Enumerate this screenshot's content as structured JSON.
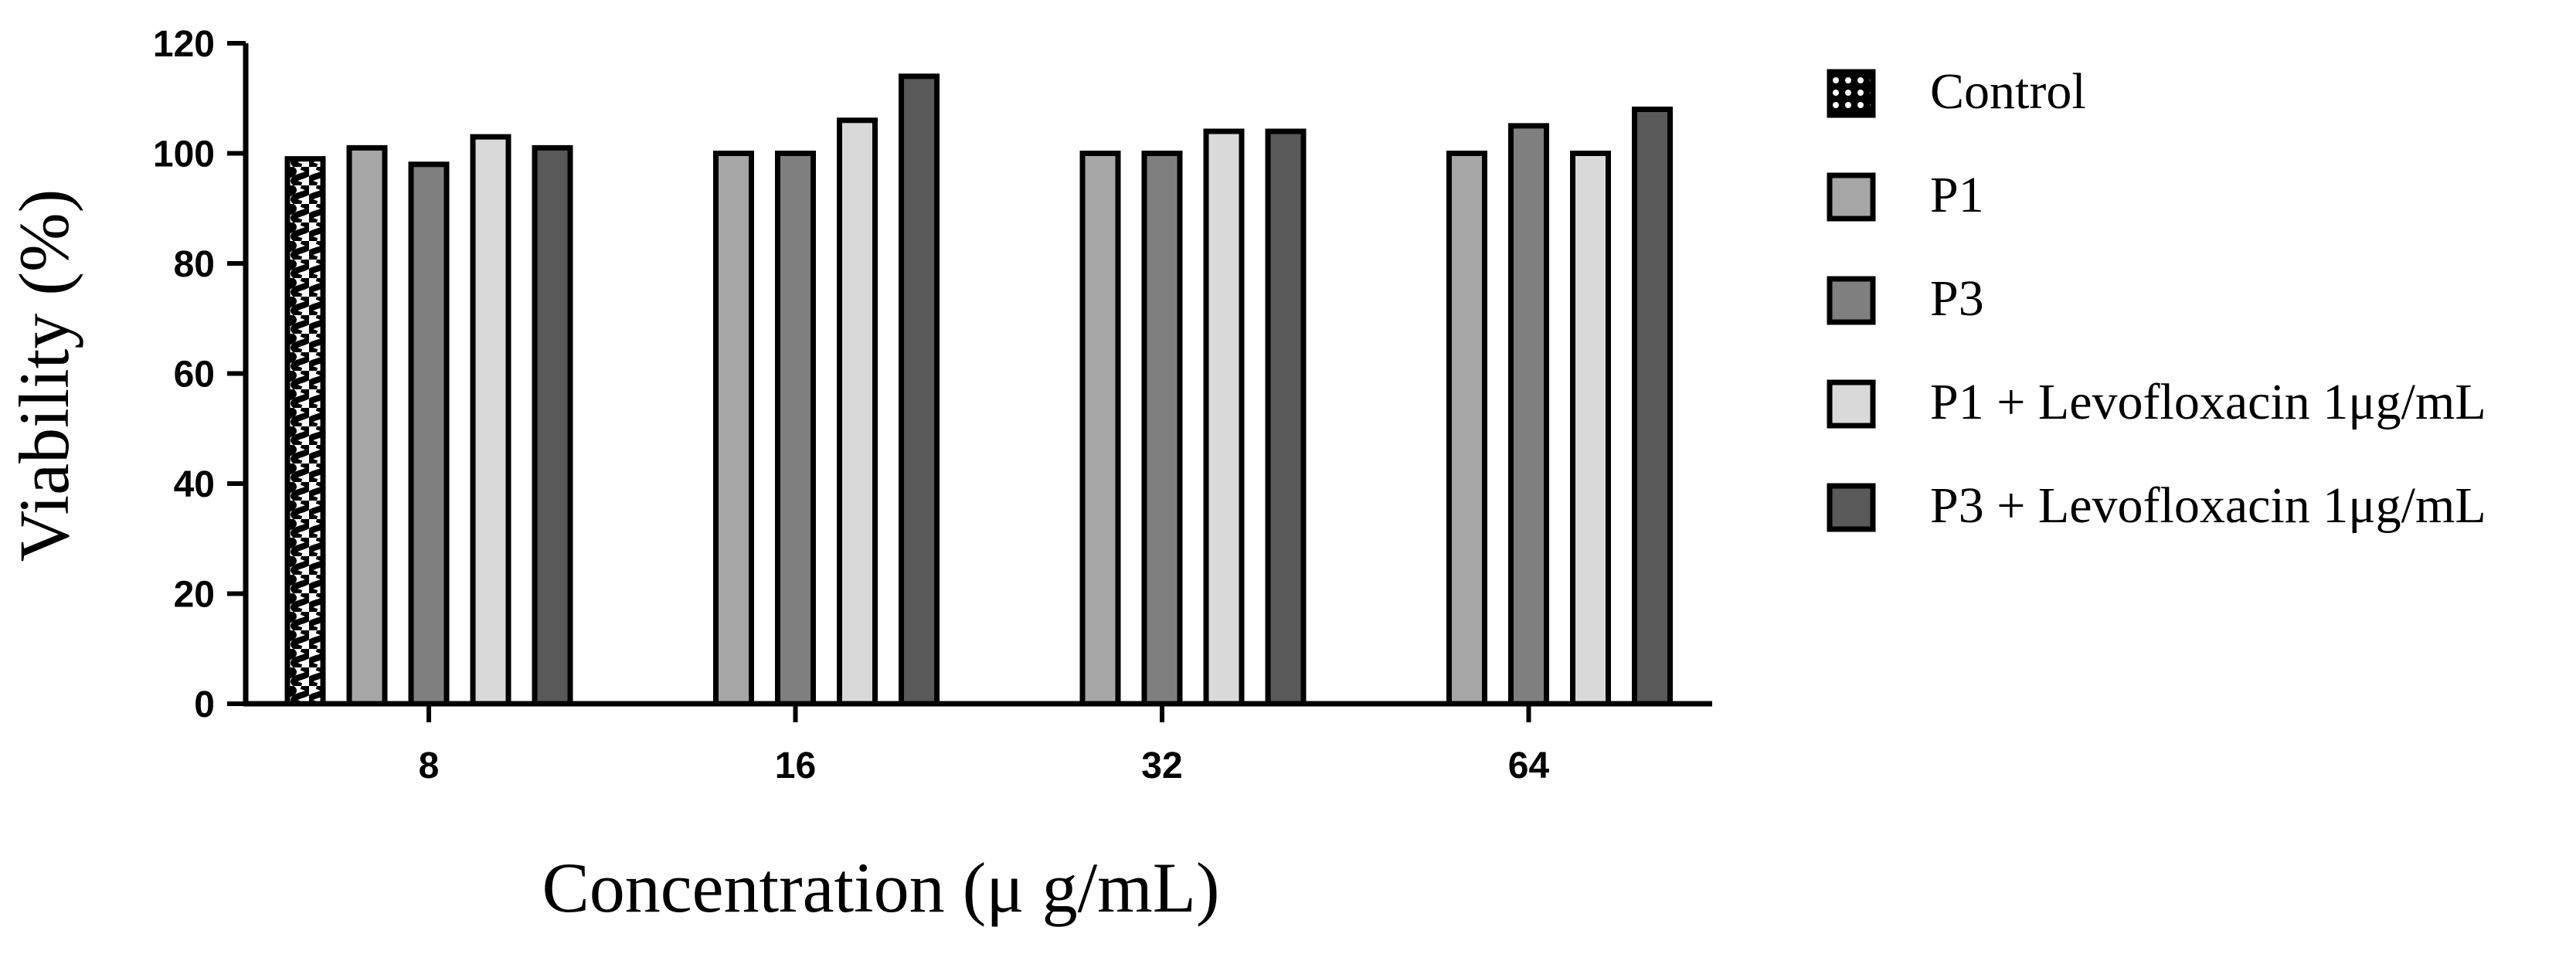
{
  "chart_data": {
    "type": "bar",
    "xlabel": "Concentration (μ g/mL)",
    "ylabel": "Viability (%)",
    "ylim": [
      0,
      120
    ],
    "yticks": [
      0,
      20,
      40,
      60,
      80,
      100,
      120
    ],
    "categories": [
      "8",
      "16",
      "32",
      "64"
    ],
    "legend_position": "right",
    "series": [
      {
        "name": "Control",
        "values": [
          99,
          null,
          null,
          null
        ],
        "color": "#ffffff",
        "pattern": "wavy-black-white"
      },
      {
        "name": "P1",
        "values": [
          101,
          100,
          100,
          100
        ],
        "color": "#a6a6a6"
      },
      {
        "name": "P3",
        "values": [
          98,
          100,
          100,
          105
        ],
        "color": "#7f7f7f"
      },
      {
        "name": "P1 + Levofloxacin 1μg/mL",
        "values": [
          103,
          106,
          104,
          100
        ],
        "color": "#d9d9d9"
      },
      {
        "name": "P3 + Levofloxacin 1μg/mL",
        "values": [
          101,
          114,
          104,
          108
        ],
        "color": "#595959"
      }
    ]
  }
}
